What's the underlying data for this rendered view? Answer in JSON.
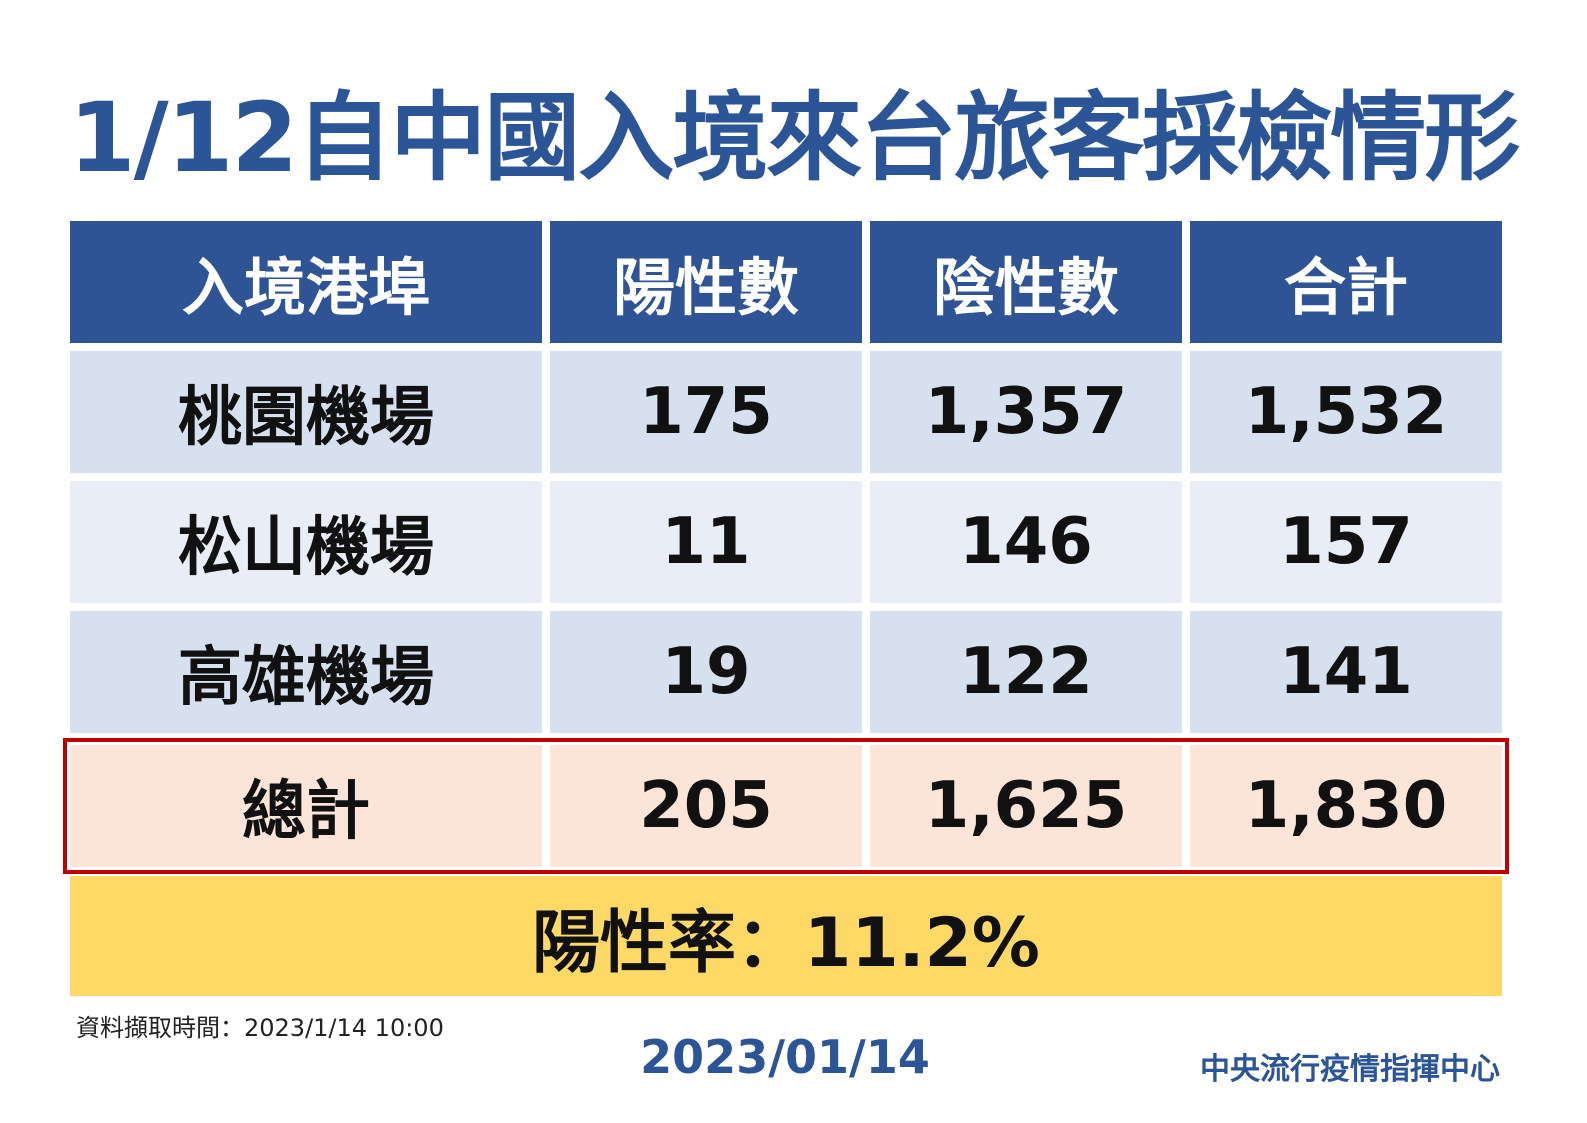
{
  "title": "1/12自中國入境來台旅客採檢情形",
  "table": {
    "headers": [
      "入境港埠",
      "陽性數",
      "陰性數",
      "合計"
    ],
    "rows": [
      [
        "桃園機場",
        "175",
        "1,357",
        "1,532"
      ],
      [
        "松山機場",
        "11",
        "146",
        "157"
      ],
      [
        "高雄機場",
        "19",
        "122",
        "141"
      ]
    ],
    "total": [
      "總計",
      "205",
      "1,625",
      "1,830"
    ]
  },
  "positive_rate": "陽性率：11.2%",
  "data_time": "資料擷取時間：2023/1/14 10:00",
  "date": "2023/01/14",
  "organization": "中央流行疫情指揮中心",
  "colors": {
    "title": "#2b5597",
    "header_bg": "#2f5496",
    "row_dark": "#d6e0ef",
    "row_light": "#e9eef6",
    "total_bg": "#fbe5d9",
    "total_border": "#c00000",
    "rate_bg": "#ffd966"
  }
}
